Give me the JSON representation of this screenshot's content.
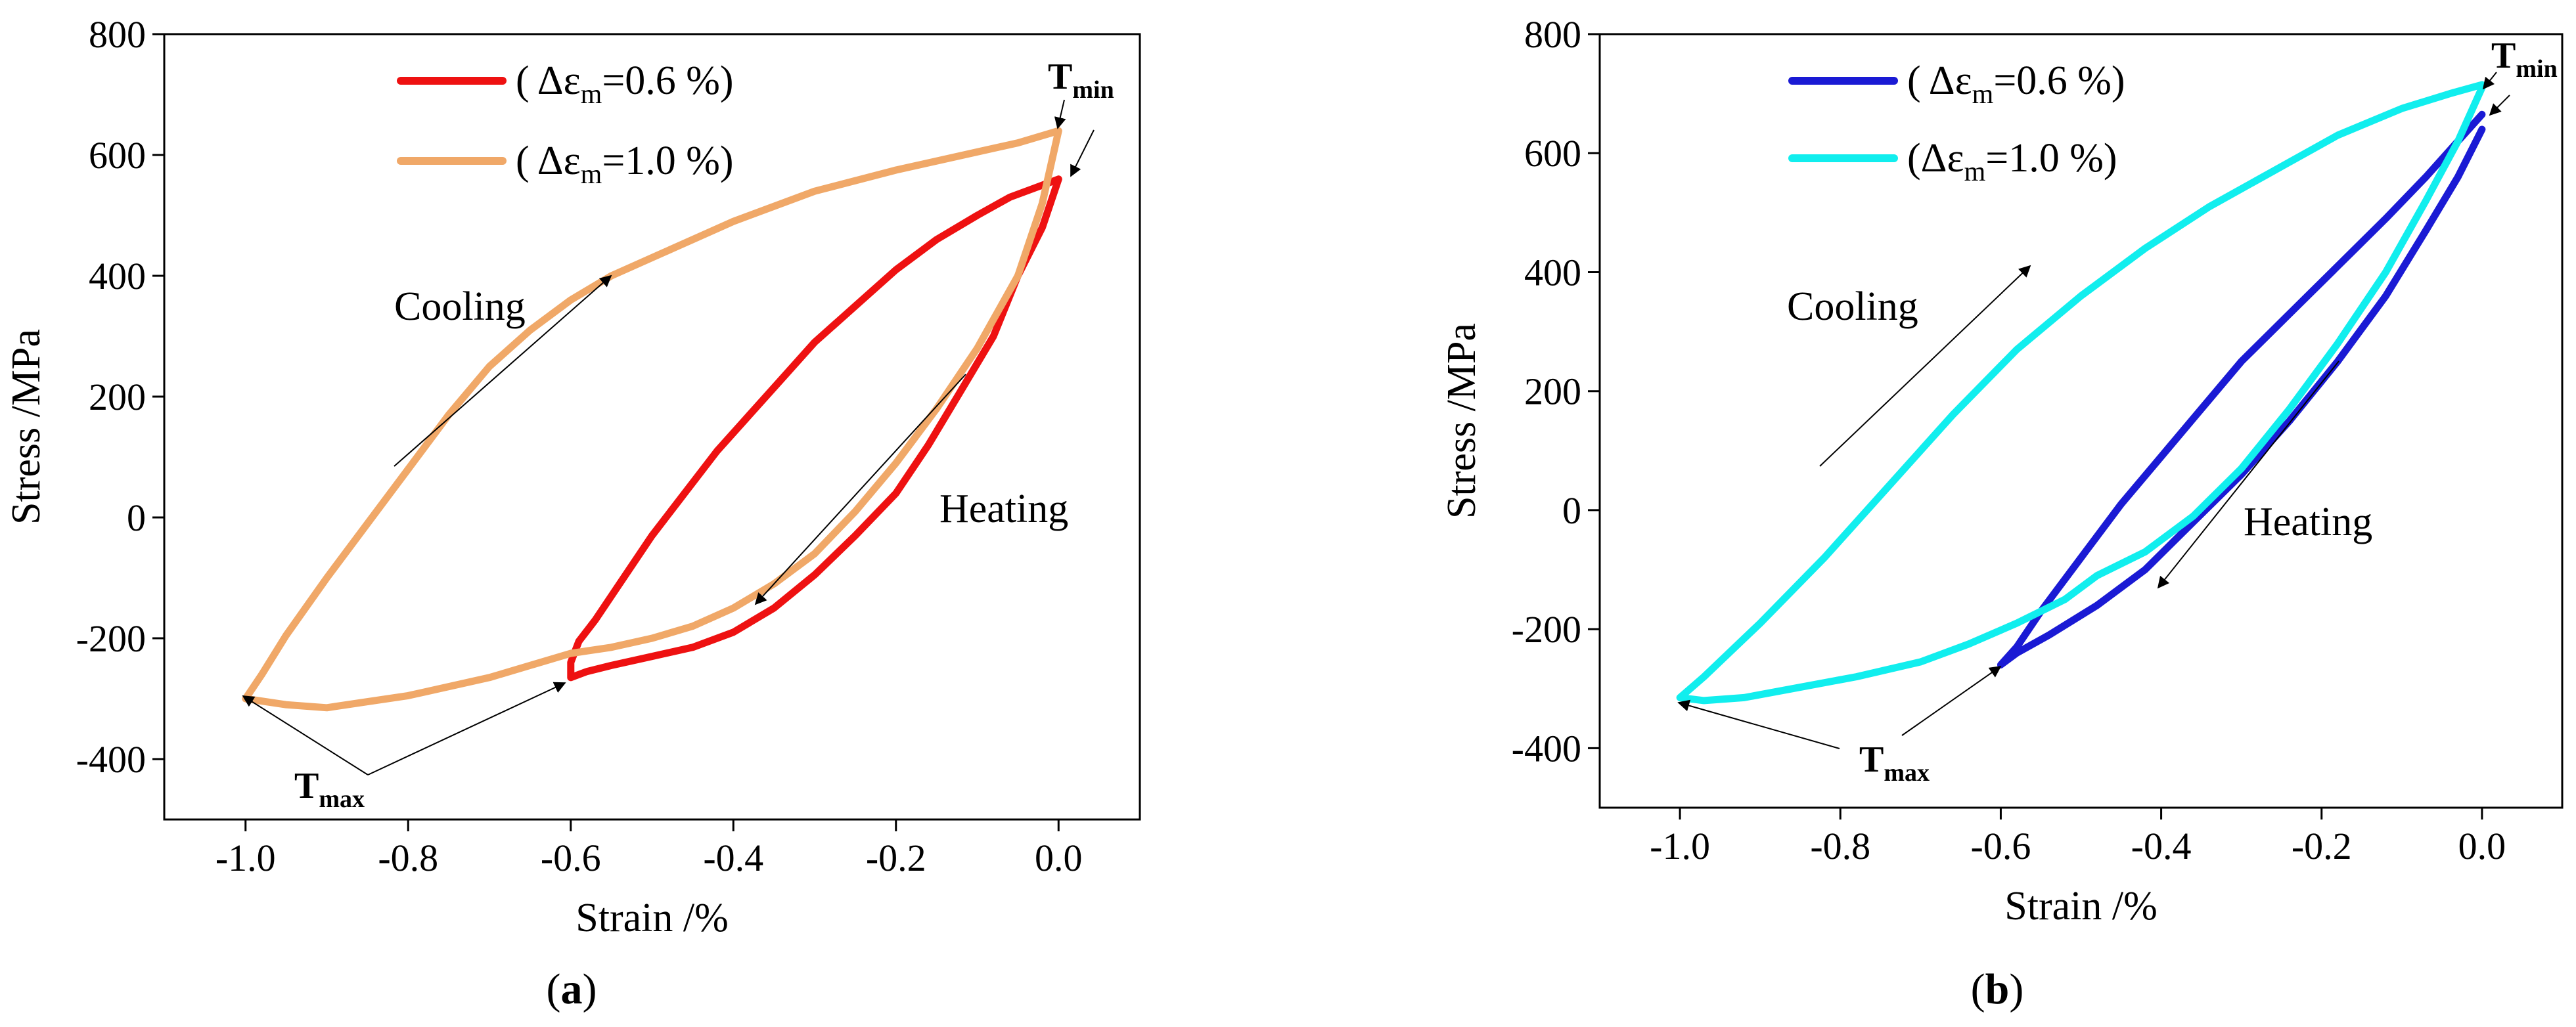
{
  "chart_data": [
    {
      "type": "line",
      "panel_label": {
        "open": "(",
        "letter": "a",
        "close": ")"
      },
      "xlabel": "Strain /%",
      "ylabel": "Stress /MPa",
      "xlim": [
        -1.1,
        0.1
      ],
      "ylim": [
        -500,
        800
      ],
      "xticks": [
        -1.0,
        -0.8,
        -0.6,
        -0.4,
        -0.2,
        0.0
      ],
      "xtick_labels": [
        "-1.0",
        "-0.8",
        "-0.6",
        "-0.4",
        "-0.2",
        "0.0"
      ],
      "yticks": [
        -400,
        -200,
        0,
        200,
        400,
        600,
        800
      ],
      "ytick_labels": [
        "-400",
        "-200",
        "0",
        "200",
        "400",
        "600",
        "800"
      ],
      "legend_position": "top-center",
      "series": [
        {
          "name": "( Δεm=0.6 %)",
          "legend_main": "( Δε",
          "legend_sub": "m",
          "legend_rest": "=0.6 %)",
          "color": "#ee1111",
          "x": [
            0.0,
            -0.02,
            -0.05,
            -0.08,
            -0.12,
            -0.16,
            -0.2,
            -0.25,
            -0.3,
            -0.35,
            -0.4,
            -0.45,
            -0.5,
            -0.55,
            -0.58,
            -0.6,
            -0.6,
            -0.59,
            -0.57,
            -0.54,
            -0.5,
            -0.46,
            -0.42,
            -0.38,
            -0.34,
            -0.3,
            -0.25,
            -0.2,
            -0.15,
            -0.1,
            -0.06,
            -0.03,
            0.0
          ],
          "y": [
            560,
            480,
            400,
            300,
            210,
            120,
            40,
            -30,
            -95,
            -150,
            -190,
            -215,
            -230,
            -245,
            -255,
            -265,
            -240,
            -205,
            -170,
            -110,
            -30,
            40,
            110,
            170,
            230,
            290,
            350,
            410,
            460,
            500,
            530,
            545,
            560
          ]
        },
        {
          "name": "( Δεm=1.0 %)",
          "legend_main": "( Δε",
          "legend_sub": "m",
          "legend_rest": "=1.0 %)",
          "color": "#f0a868",
          "x": [
            0.0,
            -0.02,
            -0.05,
            -0.1,
            -0.15,
            -0.2,
            -0.25,
            -0.3,
            -0.35,
            -0.4,
            -0.45,
            -0.5,
            -0.55,
            -0.6,
            -0.65,
            -0.7,
            -0.75,
            -0.8,
            -0.85,
            -0.9,
            -0.95,
            -1.0,
            -0.98,
            -0.95,
            -0.9,
            -0.85,
            -0.8,
            -0.75,
            -0.7,
            -0.65,
            -0.6,
            -0.55,
            -0.5,
            -0.45,
            -0.4,
            -0.3,
            -0.2,
            -0.1,
            -0.05,
            0.0
          ],
          "y": [
            640,
            520,
            400,
            280,
            180,
            90,
            10,
            -60,
            -110,
            -150,
            -180,
            -200,
            -215,
            -225,
            -245,
            -265,
            -280,
            -295,
            -305,
            -315,
            -310,
            -300,
            -260,
            -195,
            -100,
            -10,
            80,
            170,
            250,
            310,
            360,
            400,
            430,
            460,
            490,
            540,
            575,
            605,
            620,
            640
          ]
        }
      ],
      "annotations": {
        "cooling": "Cooling",
        "heating": "Heating",
        "tmin_main": "T",
        "tmin_sub": "min",
        "tmax_main": "T",
        "tmax_sub": "max"
      }
    },
    {
      "type": "line",
      "panel_label": {
        "open": "(",
        "letter": "b",
        "close": ")"
      },
      "xlabel": "Strain /%",
      "ylabel": "Stress /MPa",
      "xlim": [
        -1.1,
        0.1
      ],
      "ylim": [
        -500,
        800
      ],
      "xticks": [
        -1.0,
        -0.8,
        -0.6,
        -0.4,
        -0.2,
        0.0
      ],
      "xtick_labels": [
        "-1.0",
        "-0.8",
        "-0.6",
        "-0.4",
        "-0.2",
        "0.0"
      ],
      "yticks": [
        -400,
        -200,
        0,
        200,
        400,
        600,
        800
      ],
      "ytick_labels": [
        "-400",
        "-200",
        "0",
        "200",
        "400",
        "600",
        "800"
      ],
      "legend_position": "top-center",
      "series": [
        {
          "name": "( Δεm=0.6 %)",
          "legend_main": "( Δε",
          "legend_sub": "m",
          "legend_rest": "=0.6 %)",
          "color": "#1a1ad4",
          "x": [
            0.0,
            -0.03,
            -0.07,
            -0.12,
            -0.18,
            -0.24,
            -0.3,
            -0.36,
            -0.42,
            -0.48,
            -0.54,
            -0.58,
            -0.6,
            -0.58,
            -0.55,
            -0.5,
            -0.45,
            -0.4,
            -0.35,
            -0.3,
            -0.24,
            -0.18,
            -0.12,
            -0.07,
            -0.03,
            0.0
          ],
          "y": [
            640,
            560,
            470,
            360,
            250,
            150,
            60,
            -20,
            -100,
            -160,
            -210,
            -240,
            -260,
            -230,
            -170,
            -80,
            10,
            90,
            170,
            250,
            330,
            410,
            490,
            560,
            620,
            665
          ]
        },
        {
          "name": "(Δεm=1.0 %)",
          "legend_main": "(Δε",
          "legend_sub": "m",
          "legend_rest": "=1.0 %)",
          "color": "#11eeee",
          "x": [
            0.0,
            -0.03,
            -0.07,
            -0.12,
            -0.18,
            -0.24,
            -0.3,
            -0.36,
            -0.42,
            -0.48,
            -0.52,
            -0.58,
            -0.64,
            -0.7,
            -0.78,
            -0.86,
            -0.92,
            -0.97,
            -1.0,
            -0.97,
            -0.9,
            -0.82,
            -0.74,
            -0.66,
            -0.58,
            -0.5,
            -0.42,
            -0.34,
            -0.26,
            -0.18,
            -0.1,
            -0.04,
            0.0
          ],
          "y": [
            710,
            620,
            520,
            400,
            280,
            170,
            70,
            -10,
            -70,
            -110,
            -150,
            -190,
            -225,
            -255,
            -280,
            -300,
            -315,
            -320,
            -315,
            -280,
            -190,
            -80,
            40,
            160,
            270,
            360,
            440,
            510,
            570,
            630,
            675,
            700,
            715
          ]
        }
      ],
      "annotations": {
        "cooling": "Cooling",
        "heating": "Heating",
        "tmin_main": "T",
        "tmin_sub": "min",
        "tmax_main": "T",
        "tmax_sub": "max"
      }
    }
  ]
}
